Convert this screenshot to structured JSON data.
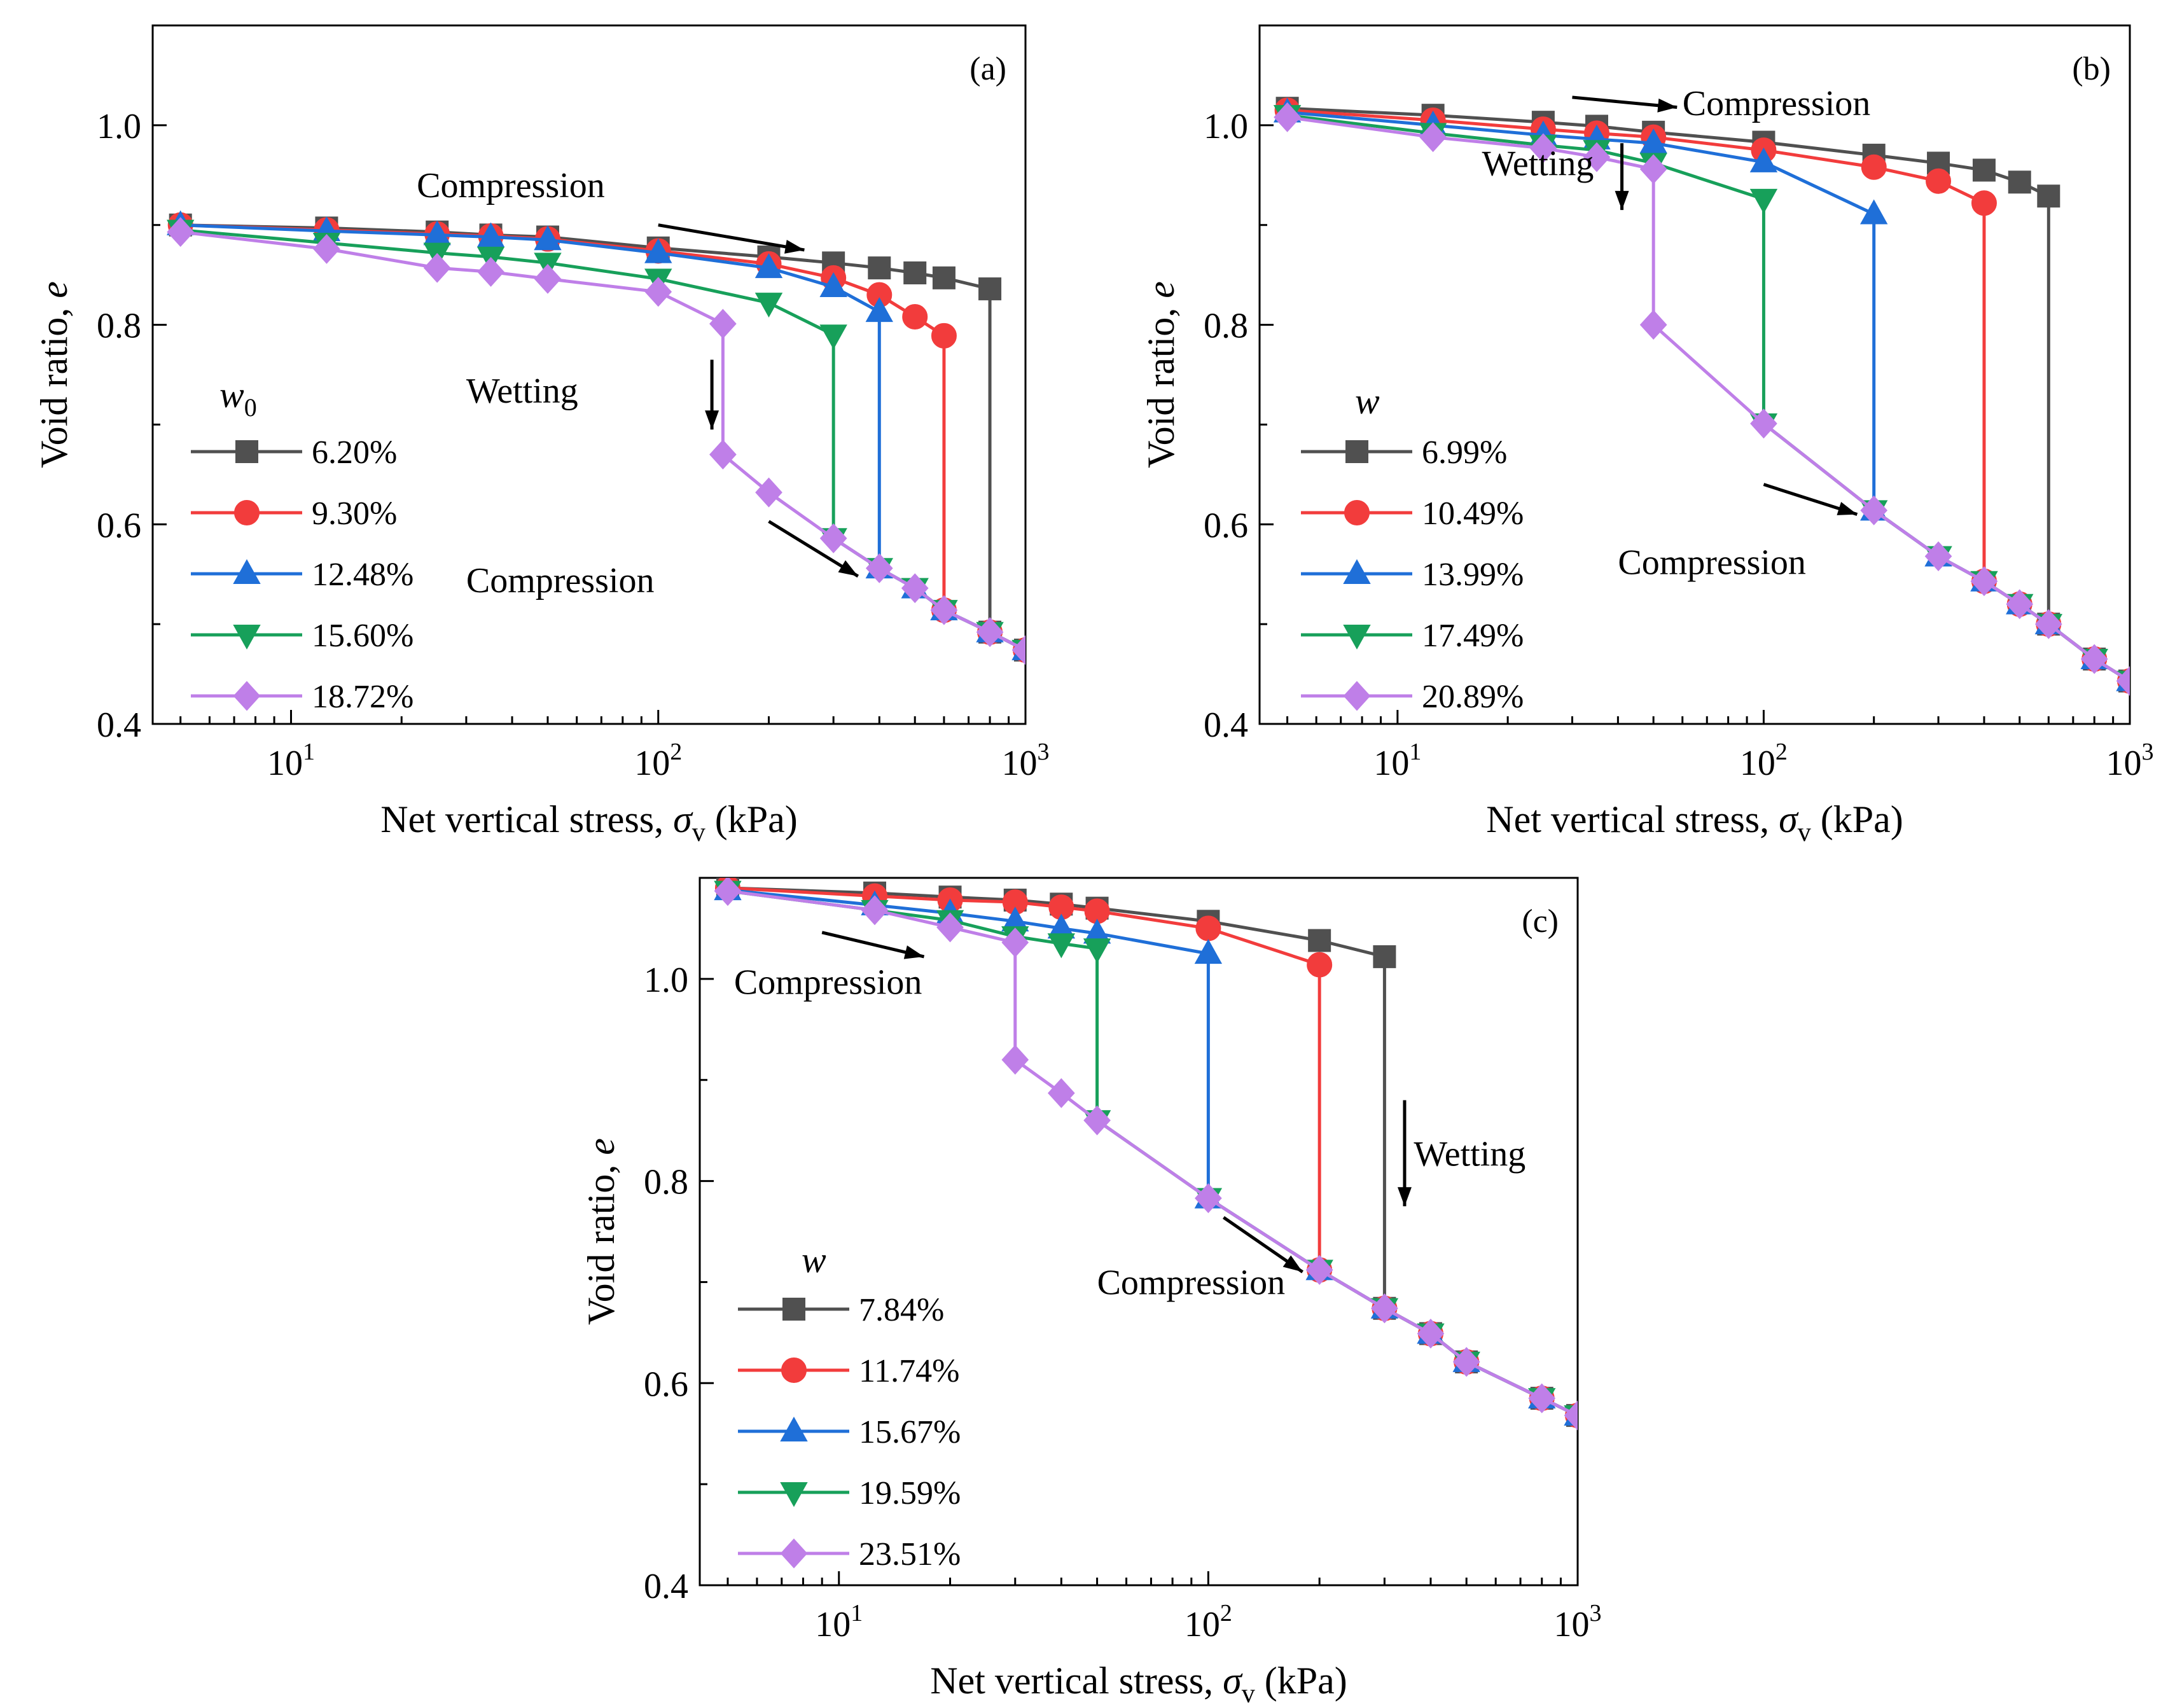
{
  "figure": {
    "colors": {
      "black": "#505050",
      "red": "#f23c3c",
      "blue": "#1f6fd8",
      "green": "#17a05a",
      "purple": "#bf7fe8"
    }
  },
  "chart_data": [
    {
      "id": "a",
      "type": "line",
      "panel_label": "(a)",
      "xscale": "log",
      "xlim": [
        4.2,
        1000
      ],
      "ylim": [
        0.4,
        1.1
      ],
      "xticks": [
        10,
        100,
        1000
      ],
      "xtick_labels": [
        {
          "base": "10",
          "exp": "1"
        },
        {
          "base": "10",
          "exp": "2"
        },
        {
          "base": "10",
          "exp": "3"
        }
      ],
      "yticks": [
        0.4,
        0.6,
        0.8,
        1.0
      ],
      "ytick_labels": [
        "0.4",
        "0.6",
        "0.8",
        "1.0"
      ],
      "xlabel": {
        "text": "Net vertical stress, ",
        "symbol": "σ",
        "sub": "v",
        "unit": " (kPa)"
      },
      "ylabel": {
        "text": "Void ratio, ",
        "symbol": "e"
      },
      "legend": {
        "title": "w",
        "title_sub": "0",
        "placement": "lower-left"
      },
      "series": [
        {
          "name": "6.20%",
          "color": "black",
          "marker": "square",
          "dry": {
            "x": [
              5,
              12.5,
              25,
              35,
              50,
              100,
              200,
              300,
              400,
              500,
              600,
              800
            ],
            "y": [
              0.9,
              0.897,
              0.893,
              0.89,
              0.888,
              0.877,
              0.868,
              0.862,
              0.857,
              0.852,
              0.847,
              0.836
            ]
          },
          "wet": {
            "x": [
              800,
              1000
            ],
            "y": [
              0.492,
              0.474
            ]
          }
        },
        {
          "name": "9.30%",
          "color": "red",
          "marker": "circle",
          "dry": {
            "x": [
              5,
              12.5,
              25,
              35,
              50,
              100,
              200,
              300,
              400,
              500,
              600
            ],
            "y": [
              0.9,
              0.895,
              0.891,
              0.889,
              0.886,
              0.874,
              0.861,
              0.847,
              0.83,
              0.808,
              0.789
            ]
          },
          "wet": {
            "x": [
              600,
              800,
              1000
            ],
            "y": [
              0.514,
              0.492,
              0.474
            ]
          }
        },
        {
          "name": "12.48%",
          "color": "blue",
          "marker": "triangle-up",
          "dry": {
            "x": [
              5,
              12.5,
              25,
              35,
              50,
              100,
              200,
              300,
              400
            ],
            "y": [
              0.9,
              0.894,
              0.89,
              0.888,
              0.885,
              0.872,
              0.857,
              0.838,
              0.813
            ]
          },
          "wet": {
            "x": [
              400,
              500,
              600,
              800,
              1000
            ],
            "y": [
              0.556,
              0.536,
              0.514,
              0.492,
              0.474
            ]
          }
        },
        {
          "name": "15.60%",
          "color": "green",
          "marker": "triangle-down",
          "dry": {
            "x": [
              5,
              12.5,
              25,
              35,
              50,
              100,
              200,
              300
            ],
            "y": [
              0.895,
              0.882,
              0.872,
              0.868,
              0.862,
              0.846,
              0.822,
              0.79
            ]
          },
          "wet": {
            "x": [
              300,
              400,
              500,
              600,
              800,
              1000
            ],
            "y": [
              0.586,
              0.556,
              0.536,
              0.514,
              0.492,
              0.474
            ]
          }
        },
        {
          "name": "18.72%",
          "color": "purple",
          "marker": "diamond",
          "dry": {
            "x": [
              5,
              12.5,
              25,
              35,
              50,
              100,
              150
            ],
            "y": [
              0.893,
              0.876,
              0.857,
              0.853,
              0.846,
              0.833,
              0.801
            ]
          },
          "wet": {
            "x": [
              150,
              200,
              300,
              400,
              500,
              600,
              800,
              1000
            ],
            "y": [
              0.67,
              0.632,
              0.586,
              0.556,
              0.536,
              0.514,
              0.492,
              0.474
            ]
          }
        }
      ],
      "annotations": [
        {
          "name": "compression-top",
          "text": "Compression",
          "tx": 22,
          "ty": 0.928,
          "arrow": {
            "x1": 100,
            "y1": 0.9,
            "x2": 250,
            "y2": 0.875
          }
        },
        {
          "name": "wetting",
          "text": "Wetting",
          "tx": 30,
          "ty": 0.722,
          "arrow": {
            "x1": 140,
            "y1": 0.765,
            "x2": 140,
            "y2": 0.695
          }
        },
        {
          "name": "compression-bottom",
          "text": "Compression",
          "tx": 30,
          "ty": 0.532,
          "arrow": {
            "x1": 200,
            "y1": 0.603,
            "x2": 350,
            "y2": 0.548
          }
        }
      ]
    },
    {
      "id": "b",
      "type": "line",
      "panel_label": "(b)",
      "xscale": "log",
      "xlim": [
        4.2,
        1000
      ],
      "ylim": [
        0.4,
        1.1
      ],
      "xticks": [
        10,
        100,
        1000
      ],
      "xtick_labels": [
        {
          "base": "10",
          "exp": "1"
        },
        {
          "base": "10",
          "exp": "2"
        },
        {
          "base": "10",
          "exp": "3"
        }
      ],
      "yticks": [
        0.4,
        0.6,
        0.8,
        1.0
      ],
      "ytick_labels": [
        "0.4",
        "0.6",
        "0.8",
        "1.0"
      ],
      "xlabel": {
        "text": "Net vertical stress, ",
        "symbol": "σ",
        "sub": "v",
        "unit": " (kPa)"
      },
      "ylabel": {
        "text": "Void ratio, ",
        "symbol": "e"
      },
      "legend": {
        "title": "w",
        "title_sub": "",
        "placement": "lower-left"
      },
      "series": [
        {
          "name": "6.99%",
          "color": "black",
          "marker": "square",
          "dry": {
            "x": [
              5,
              12.5,
              25,
              35,
              50,
              100,
              200,
              300,
              400,
              500,
              600
            ],
            "y": [
              1.017,
              1.01,
              1.003,
              0.999,
              0.993,
              0.983,
              0.97,
              0.962,
              0.955,
              0.943,
              0.929
            ]
          },
          "wet": {
            "x": [
              600,
              800,
              1000
            ],
            "y": [
              0.5,
              0.465,
              0.443
            ]
          }
        },
        {
          "name": "10.49%",
          "color": "red",
          "marker": "circle",
          "dry": {
            "x": [
              5,
              12.5,
              25,
              35,
              50,
              100,
              200,
              300,
              400
            ],
            "y": [
              1.015,
              1.005,
              0.996,
              0.992,
              0.988,
              0.975,
              0.958,
              0.944,
              0.922
            ]
          },
          "wet": {
            "x": [
              400,
              500,
              600,
              800,
              1000
            ],
            "y": [
              0.543,
              0.52,
              0.5,
              0.465,
              0.443
            ]
          }
        },
        {
          "name": "13.99%",
          "color": "blue",
          "marker": "triangle-up",
          "dry": {
            "x": [
              5,
              12.5,
              25,
              35,
              50,
              100,
              200
            ],
            "y": [
              1.013,
              1.0,
              0.99,
              0.986,
              0.982,
              0.963,
              0.911
            ]
          },
          "wet": {
            "x": [
              200,
              300,
              400,
              500,
              600,
              800,
              1000
            ],
            "y": [
              0.614,
              0.568,
              0.543,
              0.52,
              0.5,
              0.465,
              0.443
            ]
          }
        },
        {
          "name": "17.49%",
          "color": "green",
          "marker": "triangle-down",
          "dry": {
            "x": [
              5,
              12.5,
              25,
              35,
              50,
              100
            ],
            "y": [
              1.01,
              0.992,
              0.98,
              0.975,
              0.962,
              0.926
            ]
          },
          "wet": {
            "x": [
              100,
              200,
              300,
              400,
              500,
              600,
              800,
              1000
            ],
            "y": [
              0.701,
              0.614,
              0.568,
              0.543,
              0.52,
              0.5,
              0.465,
              0.443
            ]
          }
        },
        {
          "name": "20.89%",
          "color": "purple",
          "marker": "diamond",
          "dry": {
            "x": [
              5,
              12.5,
              25,
              35,
              50
            ],
            "y": [
              1.008,
              0.988,
              0.977,
              0.968,
              0.956
            ]
          },
          "wet": {
            "x": [
              50,
              100,
              200,
              300,
              400,
              500,
              600,
              800,
              1000
            ],
            "y": [
              0.8,
              0.701,
              0.614,
              0.568,
              0.543,
              0.52,
              0.5,
              0.465,
              0.443
            ]
          }
        }
      ],
      "annotations": [
        {
          "name": "compression-top",
          "text": "Compression",
          "tx": 60,
          "ty": 1.01,
          "arrow": {
            "x1": 30,
            "y1": 1.028,
            "x2": 58,
            "y2": 1.018
          }
        },
        {
          "name": "wetting",
          "text": "Wetting",
          "tx": 17,
          "ty": 0.95,
          "arrow": {
            "x1": 41,
            "y1": 0.982,
            "x2": 41,
            "y2": 0.915
          }
        },
        {
          "name": "compression-bottom",
          "text": "Compression",
          "tx": 40,
          "ty": 0.55,
          "arrow": {
            "x1": 100,
            "y1": 0.64,
            "x2": 180,
            "y2": 0.61
          }
        }
      ]
    },
    {
      "id": "c",
      "type": "line",
      "panel_label": "(c)",
      "xscale": "log",
      "xlim": [
        4.2,
        1000
      ],
      "ylim": [
        0.4,
        1.1
      ],
      "xticks": [
        10,
        100,
        1000
      ],
      "xtick_labels": [
        {
          "base": "10",
          "exp": "1"
        },
        {
          "base": "10",
          "exp": "2"
        },
        {
          "base": "10",
          "exp": "3"
        }
      ],
      "yticks": [
        0.4,
        0.6,
        0.8,
        1.0
      ],
      "ytick_labels": [
        "0.4",
        "0.6",
        "0.8",
        "1.0"
      ],
      "xlabel": {
        "text": "Net vertical stress, ",
        "symbol": "σ",
        "sub": "v",
        "unit": " (kPa)"
      },
      "ylabel": {
        "text": "Void ratio, ",
        "symbol": "e"
      },
      "legend": {
        "title": "w",
        "title_sub": "",
        "placement": "lower-left"
      },
      "series": [
        {
          "name": "7.84%",
          "color": "black",
          "marker": "square",
          "dry": {
            "x": [
              5,
              12.5,
              20,
              30,
              40,
              50,
              100,
              200,
              300
            ],
            "y": [
              1.09,
              1.085,
              1.081,
              1.078,
              1.074,
              1.07,
              1.057,
              1.038,
              1.022
            ]
          },
          "wet": {
            "x": [
              300,
              400,
              500,
              800,
              1000
            ],
            "y": [
              0.674,
              0.649,
              0.621,
              0.585,
              0.568
            ]
          }
        },
        {
          "name": "11.74%",
          "color": "red",
          "marker": "circle",
          "dry": {
            "x": [
              5,
              12.5,
              20,
              30,
              40,
              50,
              100,
              200
            ],
            "y": [
              1.09,
              1.082,
              1.078,
              1.076,
              1.071,
              1.067,
              1.05,
              1.014
            ]
          },
          "wet": {
            "x": [
              200,
              300,
              400,
              500,
              800,
              1000
            ],
            "y": [
              0.712,
              0.674,
              0.649,
              0.621,
              0.585,
              0.568
            ]
          }
        },
        {
          "name": "15.67%",
          "color": "blue",
          "marker": "triangle-up",
          "dry": {
            "x": [
              5,
              12.5,
              20,
              30,
              40,
              50,
              100
            ],
            "y": [
              1.088,
              1.073,
              1.065,
              1.057,
              1.05,
              1.045,
              1.025
            ]
          },
          "wet": {
            "x": [
              100,
              200,
              300,
              400,
              500,
              800,
              1000
            ],
            "y": [
              0.783,
              0.712,
              0.674,
              0.649,
              0.621,
              0.585,
              0.568
            ]
          }
        },
        {
          "name": "19.59%",
          "color": "green",
          "marker": "triangle-down",
          "dry": {
            "x": [
              5,
              12.5,
              20,
              30,
              40,
              50
            ],
            "y": [
              1.087,
              1.068,
              1.058,
              1.042,
              1.035,
              1.03
            ]
          },
          "wet": {
            "x": [
              50,
              100,
              200,
              300,
              400,
              500,
              800,
              1000
            ],
            "y": [
              0.86,
              0.783,
              0.712,
              0.674,
              0.649,
              0.621,
              0.585,
              0.568
            ]
          }
        },
        {
          "name": "23.51%",
          "color": "purple",
          "marker": "diamond",
          "dry": {
            "x": [
              5,
              12.5,
              20,
              30
            ],
            "y": [
              1.087,
              1.068,
              1.051,
              1.036
            ]
          },
          "wet": {
            "x": [
              30,
              40,
              50,
              100,
              200,
              300,
              400,
              500,
              800,
              1000
            ],
            "y": [
              0.92,
              0.887,
              0.86,
              0.783,
              0.712,
              0.674,
              0.649,
              0.621,
              0.585,
              0.568
            ]
          }
        }
      ],
      "annotations": [
        {
          "name": "compression-top",
          "text": "Compression",
          "tx": 5.2,
          "ty": 0.985,
          "arrow": {
            "x1": 9,
            "y1": 1.046,
            "x2": 17,
            "y2": 1.022
          }
        },
        {
          "name": "wetting",
          "text": "Wetting",
          "tx": 360,
          "ty": 0.815,
          "arrow": {
            "x1": 340,
            "y1": 0.88,
            "x2": 340,
            "y2": 0.775
          }
        },
        {
          "name": "compression-bottom",
          "text": "Compression",
          "tx": 50,
          "ty": 0.688,
          "arrow": {
            "x1": 110,
            "y1": 0.764,
            "x2": 180,
            "y2": 0.71
          }
        }
      ]
    }
  ]
}
